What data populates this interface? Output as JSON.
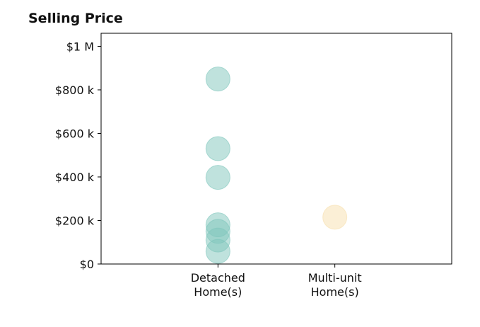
{
  "chart_data": {
    "type": "scatter",
    "title": "Selling Price",
    "xlabel": "",
    "ylabel": "",
    "categories": [
      "Detached\nHome(s)",
      "Multi-unit\nHome(s)"
    ],
    "yticks": [
      {
        "value": 0,
        "label": "$0"
      },
      {
        "value": 200000,
        "label": "$200 k"
      },
      {
        "value": 400000,
        "label": "$400 k"
      },
      {
        "value": 600000,
        "label": "$600 k"
      },
      {
        "value": 800000,
        "label": "$800 k"
      },
      {
        "value": 1000000,
        "label": "$1 M"
      }
    ],
    "ylim": [
      0,
      1060000
    ],
    "grid": false,
    "series": [
      {
        "category": "Detached\nHome(s)",
        "color": "#7fc6bc",
        "values": [
          850000,
          530000,
          398000,
          180000,
          150000,
          110000,
          58000
        ]
      },
      {
        "category": "Multi-unit\nHome(s)",
        "color": "#f7dfae",
        "values": [
          215000
        ]
      }
    ]
  }
}
